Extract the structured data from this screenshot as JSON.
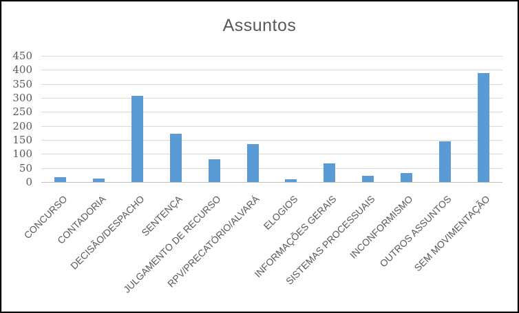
{
  "chart_data": {
    "type": "bar",
    "title": "Assuntos",
    "categories": [
      "CONCURSO",
      "CONTADORIA",
      "DECISÃO/DESPACHO",
      "SENTENÇA",
      "JULGAMENTO DE RECURSO",
      "RPV/PRECATÓRIO/ALVARÁ",
      "ELOGIOS",
      "INFORMAÇÕES GERAIS",
      "SISTEMAS PROCESSUAIS",
      "INCONFORMISMO",
      "OUTROS ASSUNTOS",
      "SEM MOVIMENTAÇÃO"
    ],
    "values": [
      17,
      13,
      308,
      171,
      82,
      136,
      11,
      67,
      22,
      32,
      145,
      388
    ],
    "xlabel": "",
    "ylabel": "",
    "ylim": [
      0,
      450
    ],
    "yticks": [
      0,
      50,
      100,
      150,
      200,
      250,
      300,
      350,
      400,
      450
    ],
    "grid": true,
    "legend": false,
    "x_label_rotation_deg": 45,
    "colors": {
      "bar": "#5B9BD5",
      "gridline": "#D9D9D9",
      "axis_line": "#BFBFBF",
      "text": "#595959",
      "background": "#FFFFFF",
      "frame_border": "#000000"
    }
  }
}
